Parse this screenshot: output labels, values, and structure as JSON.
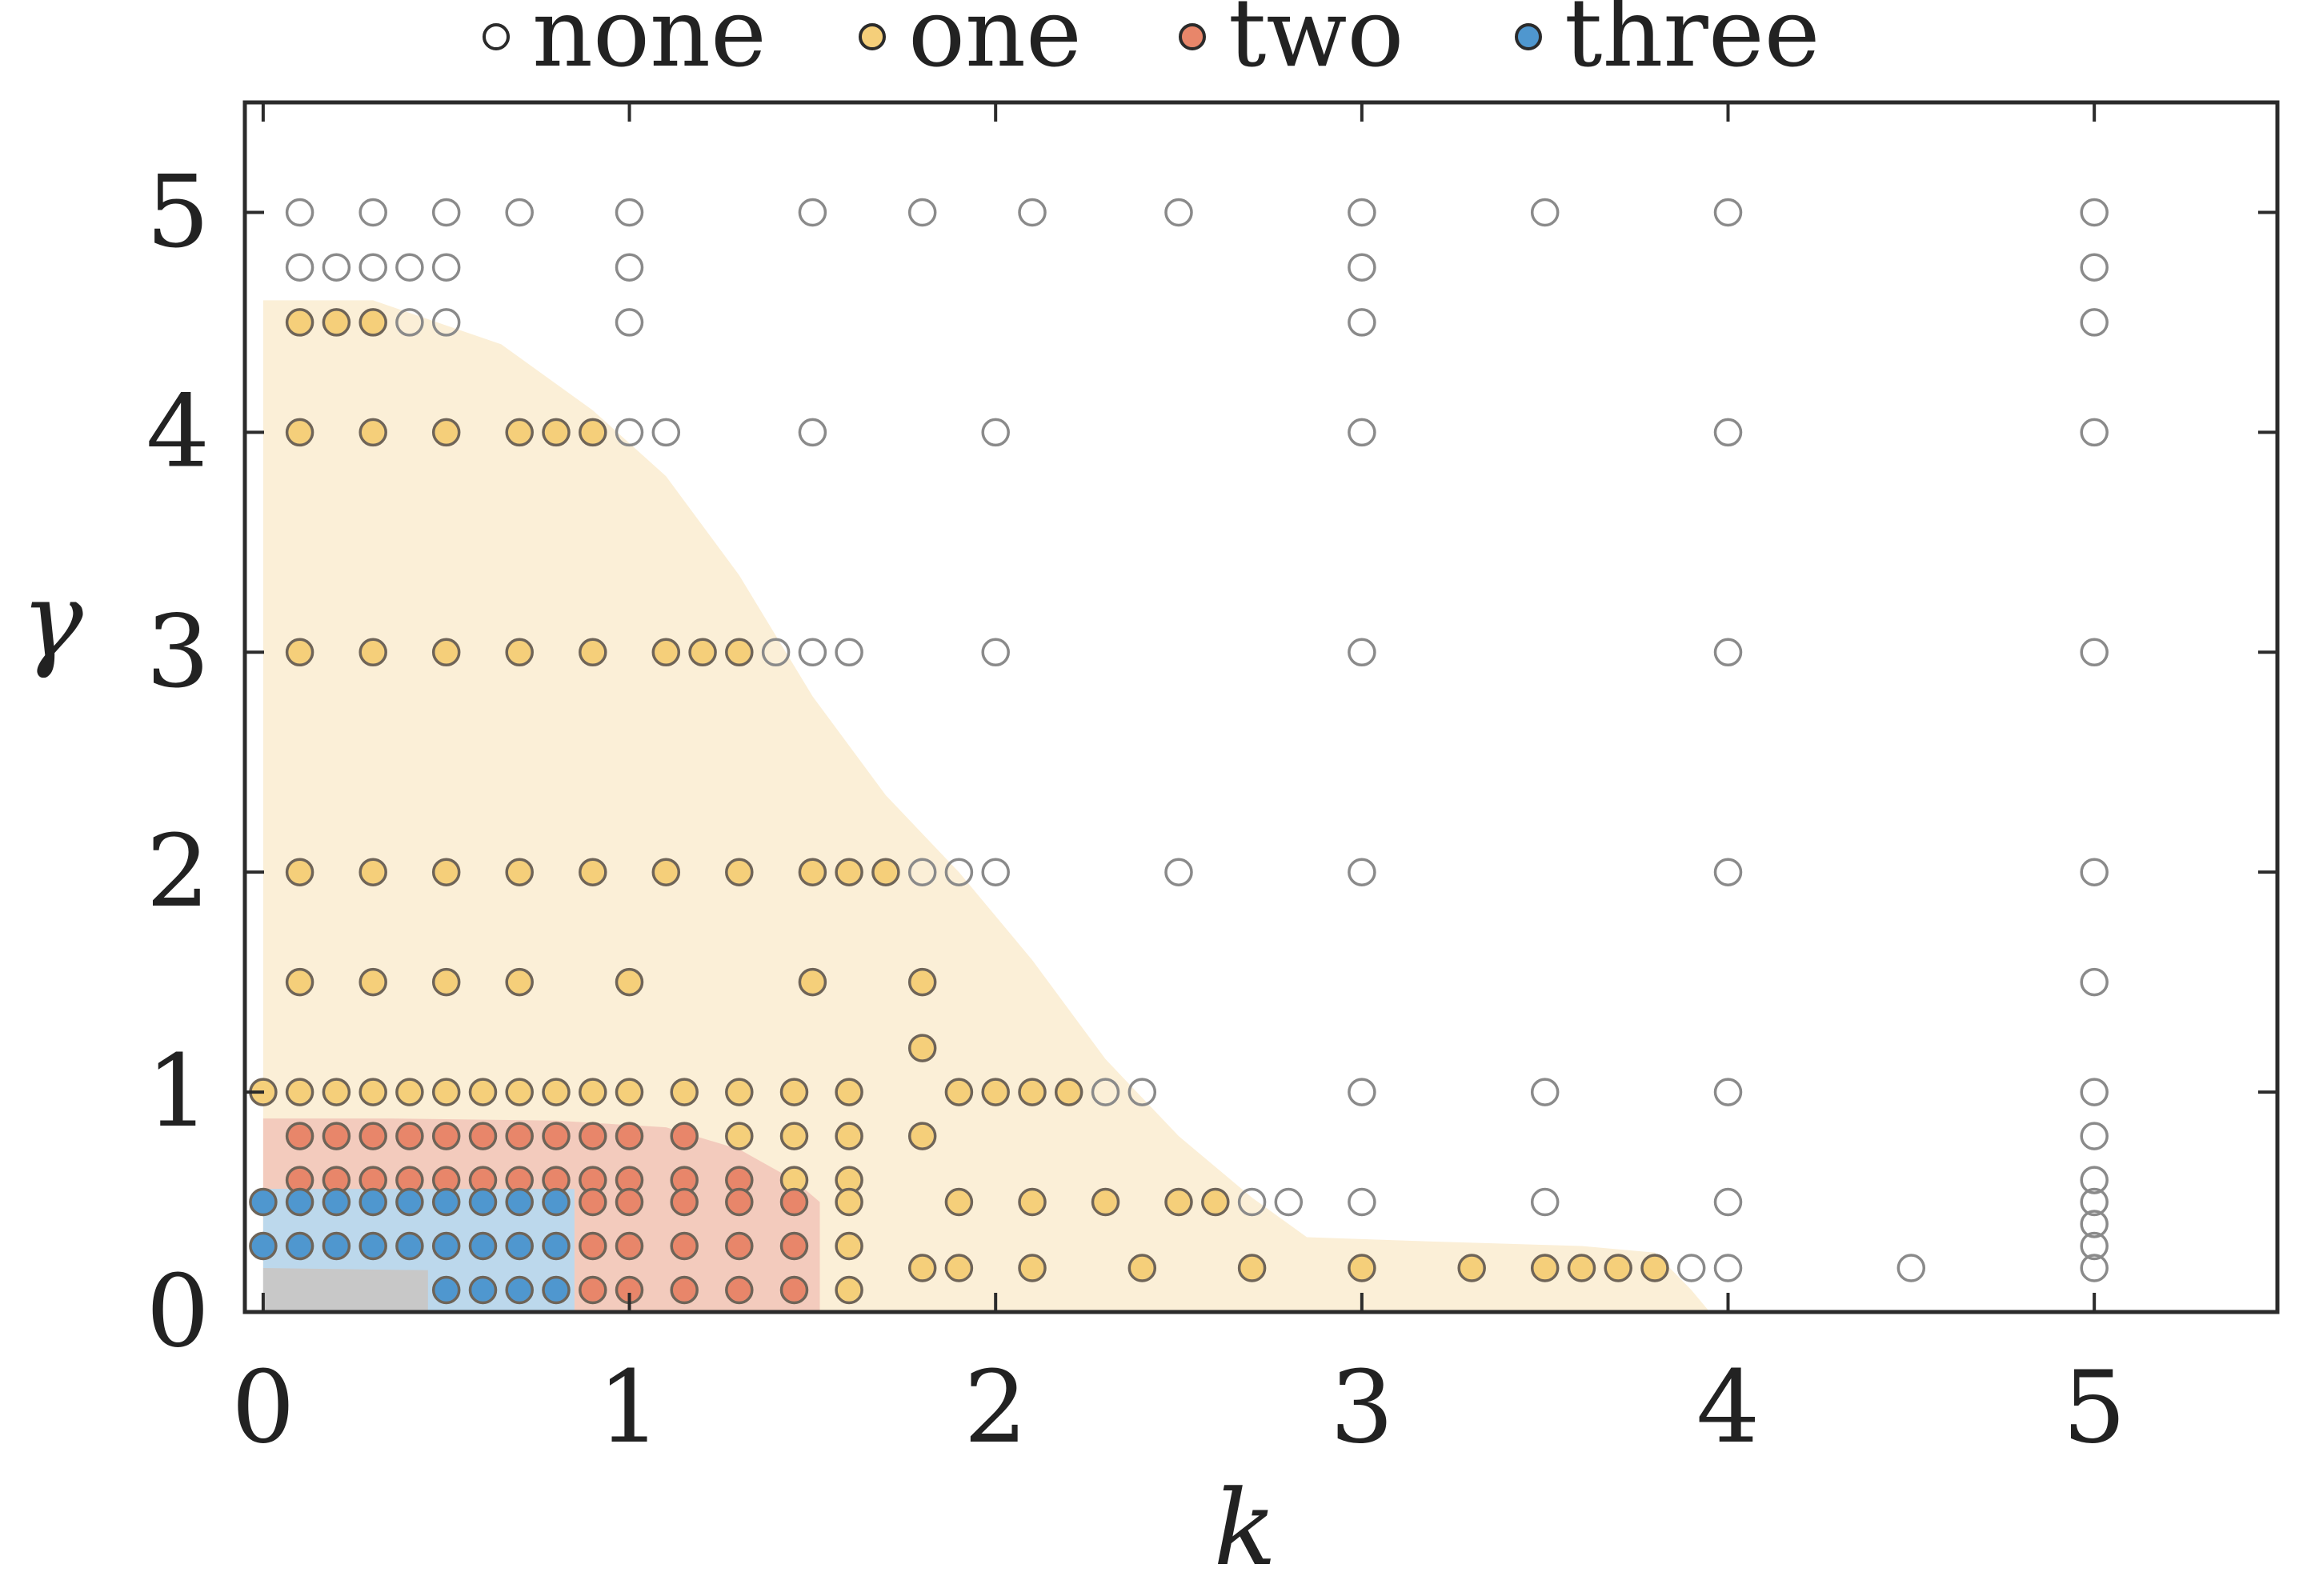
{
  "chart_data": {
    "type": "scatter",
    "xlabel": "k",
    "ylabel": "γ",
    "xlim": [
      -0.05,
      5.5
    ],
    "ylim": [
      0,
      5.5
    ],
    "xticks": [
      "0",
      "1",
      "2",
      "3",
      "4",
      "5"
    ],
    "yticks": [
      "0",
      "1",
      "2",
      "3",
      "4",
      "5"
    ],
    "legend": {
      "placement": "top",
      "entries": [
        {
          "key": "none",
          "label": "none"
        },
        {
          "key": "one",
          "label": "one"
        },
        {
          "key": "two",
          "label": "two"
        },
        {
          "key": "three",
          "label": "three"
        }
      ]
    },
    "colors": {
      "none": "#ffffff",
      "one": "#f5cf7a",
      "two": "#e8866a",
      "three": "#4f97cf",
      "none_edge": "#8a8a8a",
      "filled_edge": "#6e6458",
      "region_one": "#fbefd7",
      "region_two": "#f3cbbd",
      "region_three": "#bcd8ec",
      "region_gray": "#c8c8c8"
    },
    "regions": [
      {
        "name": "one",
        "boundary": [
          [
            0,
            0
          ],
          [
            0,
            4.6
          ],
          [
            0.3,
            4.6
          ],
          [
            0.65,
            4.4
          ],
          [
            0.9,
            4.1
          ],
          [
            1.1,
            3.8
          ],
          [
            1.3,
            3.35
          ],
          [
            1.5,
            2.8
          ],
          [
            1.7,
            2.35
          ],
          [
            1.9,
            2.0
          ],
          [
            2.1,
            1.6
          ],
          [
            2.3,
            1.15
          ],
          [
            2.5,
            0.8
          ],
          [
            2.7,
            0.52
          ],
          [
            2.85,
            0.34
          ],
          [
            3.2,
            0.32
          ],
          [
            3.6,
            0.3
          ],
          [
            3.8,
            0.27
          ],
          [
            3.9,
            0.1
          ],
          [
            3.95,
            0
          ]
        ]
      },
      {
        "name": "two",
        "boundary": [
          [
            0,
            0
          ],
          [
            0,
            0.88
          ],
          [
            0.35,
            0.88
          ],
          [
            0.8,
            0.87
          ],
          [
            1.1,
            0.84
          ],
          [
            1.3,
            0.74
          ],
          [
            1.45,
            0.6
          ],
          [
            1.52,
            0.5
          ],
          [
            1.52,
            0
          ]
        ]
      },
      {
        "name": "three",
        "boundary": [
          [
            0,
            0
          ],
          [
            0,
            0.56
          ],
          [
            0.85,
            0.56
          ],
          [
            0.85,
            0
          ]
        ]
      },
      {
        "name": "gray",
        "boundary": [
          [
            0,
            0
          ],
          [
            0,
            0.2
          ],
          [
            0.45,
            0.19
          ],
          [
            0.45,
            0
          ]
        ]
      }
    ],
    "series": [
      {
        "key": "none",
        "label": "none",
        "points": [
          [
            0.1,
            5
          ],
          [
            0.3,
            5
          ],
          [
            0.5,
            5
          ],
          [
            0.7,
            5
          ],
          [
            1.0,
            5
          ],
          [
            1.5,
            5
          ],
          [
            1.8,
            5
          ],
          [
            2.1,
            5
          ],
          [
            2.5,
            5
          ],
          [
            3,
            5
          ],
          [
            3.5,
            5
          ],
          [
            4,
            5
          ],
          [
            5,
            5
          ],
          [
            0.1,
            4.75
          ],
          [
            0.2,
            4.75
          ],
          [
            0.3,
            4.75
          ],
          [
            0.4,
            4.75
          ],
          [
            0.5,
            4.75
          ],
          [
            1.0,
            4.75
          ],
          [
            3,
            4.75
          ],
          [
            5,
            4.75
          ],
          [
            0.4,
            4.5
          ],
          [
            0.5,
            4.5
          ],
          [
            1.0,
            4.5
          ],
          [
            3,
            4.5
          ],
          [
            5,
            4.5
          ],
          [
            1.0,
            4
          ],
          [
            1.1,
            4
          ],
          [
            1.5,
            4
          ],
          [
            2,
            4
          ],
          [
            3,
            4
          ],
          [
            4,
            4
          ],
          [
            5,
            4
          ],
          [
            1.4,
            3
          ],
          [
            1.5,
            3
          ],
          [
            1.6,
            3
          ],
          [
            2,
            3
          ],
          [
            3,
            3
          ],
          [
            4,
            3
          ],
          [
            5,
            3
          ],
          [
            1.8,
            2
          ],
          [
            1.9,
            2
          ],
          [
            2,
            2
          ],
          [
            2.5,
            2
          ],
          [
            3,
            2
          ],
          [
            4,
            2
          ],
          [
            5,
            2
          ],
          [
            5,
            1.5
          ],
          [
            2.3,
            1
          ],
          [
            2.4,
            1
          ],
          [
            3,
            1
          ],
          [
            3.5,
            1
          ],
          [
            4,
            1
          ],
          [
            5,
            1
          ],
          [
            5,
            0.8
          ],
          [
            5,
            0.6
          ],
          [
            2.7,
            0.5
          ],
          [
            2.8,
            0.5
          ],
          [
            3,
            0.5
          ],
          [
            3.5,
            0.5
          ],
          [
            4,
            0.5
          ],
          [
            5,
            0.5
          ],
          [
            5,
            0.4
          ],
          [
            5,
            0.3
          ],
          [
            3.9,
            0.2
          ],
          [
            4,
            0.2
          ],
          [
            4.5,
            0.2
          ],
          [
            5,
            0.2
          ]
        ]
      },
      {
        "key": "one",
        "label": "one",
        "points": [
          [
            0.1,
            4.5
          ],
          [
            0.2,
            4.5
          ],
          [
            0.3,
            4.5
          ],
          [
            0.1,
            4
          ],
          [
            0.3,
            4
          ],
          [
            0.5,
            4
          ],
          [
            0.7,
            4
          ],
          [
            0.8,
            4
          ],
          [
            0.9,
            4
          ],
          [
            0.1,
            3
          ],
          [
            0.3,
            3
          ],
          [
            0.5,
            3
          ],
          [
            0.7,
            3
          ],
          [
            0.9,
            3
          ],
          [
            1.1,
            3
          ],
          [
            1.2,
            3
          ],
          [
            1.3,
            3
          ],
          [
            0.1,
            2
          ],
          [
            0.3,
            2
          ],
          [
            0.5,
            2
          ],
          [
            0.7,
            2
          ],
          [
            0.9,
            2
          ],
          [
            1.1,
            2
          ],
          [
            1.3,
            2
          ],
          [
            1.5,
            2
          ],
          [
            1.6,
            2
          ],
          [
            1.7,
            2
          ],
          [
            0.1,
            1.5
          ],
          [
            0.3,
            1.5
          ],
          [
            0.5,
            1.5
          ],
          [
            0.7,
            1.5
          ],
          [
            1.0,
            1.5
          ],
          [
            1.5,
            1.5
          ],
          [
            1.8,
            1.5
          ],
          [
            1.8,
            1.2
          ],
          [
            0,
            1
          ],
          [
            0.1,
            1
          ],
          [
            0.2,
            1
          ],
          [
            0.3,
            1
          ],
          [
            0.4,
            1
          ],
          [
            0.5,
            1
          ],
          [
            0.6,
            1
          ],
          [
            0.7,
            1
          ],
          [
            0.8,
            1
          ],
          [
            0.9,
            1
          ],
          [
            1.0,
            1
          ],
          [
            1.15,
            1
          ],
          [
            1.3,
            1
          ],
          [
            1.45,
            1
          ],
          [
            1.6,
            1
          ],
          [
            1.9,
            1
          ],
          [
            2.0,
            1
          ],
          [
            2.1,
            1
          ],
          [
            2.2,
            1
          ],
          [
            1.3,
            0.8
          ],
          [
            1.45,
            0.8
          ],
          [
            1.6,
            0.8
          ],
          [
            1.8,
            0.8
          ],
          [
            1.45,
            0.6
          ],
          [
            1.6,
            0.6
          ],
          [
            1.6,
            0.5
          ],
          [
            1.9,
            0.5
          ],
          [
            2.1,
            0.5
          ],
          [
            2.3,
            0.5
          ],
          [
            2.5,
            0.5
          ],
          [
            2.6,
            0.5
          ],
          [
            1.6,
            0.3
          ],
          [
            1.8,
            0.2
          ],
          [
            1.9,
            0.2
          ],
          [
            2.1,
            0.2
          ],
          [
            2.4,
            0.2
          ],
          [
            2.7,
            0.2
          ],
          [
            3,
            0.2
          ],
          [
            3.3,
            0.2
          ],
          [
            3.5,
            0.2
          ],
          [
            3.6,
            0.2
          ],
          [
            3.7,
            0.2
          ],
          [
            3.8,
            0.2
          ],
          [
            1.6,
            0.1
          ]
        ]
      },
      {
        "key": "two",
        "label": "two",
        "points": [
          [
            0.1,
            0.8
          ],
          [
            0.2,
            0.8
          ],
          [
            0.3,
            0.8
          ],
          [
            0.4,
            0.8
          ],
          [
            0.5,
            0.8
          ],
          [
            0.6,
            0.8
          ],
          [
            0.7,
            0.8
          ],
          [
            0.8,
            0.8
          ],
          [
            0.9,
            0.8
          ],
          [
            1.0,
            0.8
          ],
          [
            1.15,
            0.8
          ],
          [
            0.1,
            0.6
          ],
          [
            0.2,
            0.6
          ],
          [
            0.3,
            0.6
          ],
          [
            0.4,
            0.6
          ],
          [
            0.5,
            0.6
          ],
          [
            0.6,
            0.6
          ],
          [
            0.7,
            0.6
          ],
          [
            0.8,
            0.6
          ],
          [
            0.9,
            0.6
          ],
          [
            1.0,
            0.6
          ],
          [
            1.15,
            0.6
          ],
          [
            1.3,
            0.6
          ],
          [
            0.9,
            0.5
          ],
          [
            1.0,
            0.5
          ],
          [
            1.15,
            0.5
          ],
          [
            1.3,
            0.5
          ],
          [
            1.45,
            0.5
          ],
          [
            0.9,
            0.3
          ],
          [
            1.0,
            0.3
          ],
          [
            1.15,
            0.3
          ],
          [
            1.3,
            0.3
          ],
          [
            1.45,
            0.3
          ],
          [
            0.9,
            0.1
          ],
          [
            1.0,
            0.1
          ],
          [
            1.15,
            0.1
          ],
          [
            1.3,
            0.1
          ],
          [
            1.45,
            0.1
          ]
        ]
      },
      {
        "key": "three",
        "label": "three",
        "points": [
          [
            0,
            0.5
          ],
          [
            0.1,
            0.5
          ],
          [
            0.2,
            0.5
          ],
          [
            0.3,
            0.5
          ],
          [
            0.4,
            0.5
          ],
          [
            0.5,
            0.5
          ],
          [
            0.6,
            0.5
          ],
          [
            0.7,
            0.5
          ],
          [
            0.8,
            0.5
          ],
          [
            0,
            0.3
          ],
          [
            0.1,
            0.3
          ],
          [
            0.2,
            0.3
          ],
          [
            0.3,
            0.3
          ],
          [
            0.4,
            0.3
          ],
          [
            0.5,
            0.3
          ],
          [
            0.6,
            0.3
          ],
          [
            0.7,
            0.3
          ],
          [
            0.8,
            0.3
          ],
          [
            0.5,
            0.1
          ],
          [
            0.6,
            0.1
          ],
          [
            0.7,
            0.1
          ],
          [
            0.8,
            0.1
          ]
        ]
      }
    ]
  }
}
